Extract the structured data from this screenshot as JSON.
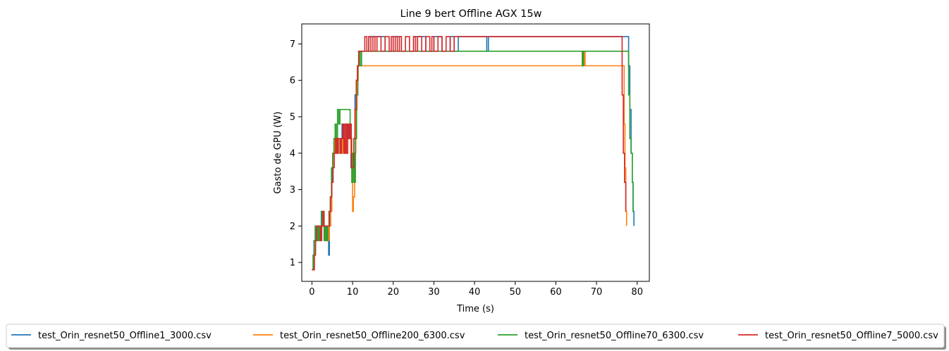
{
  "chart_data": {
    "type": "line",
    "title": "Line 9 bert Offline AGX 15w",
    "xlabel": "Time (s)",
    "ylabel": "Gasto de GPU (W)",
    "xlim": [
      -2.5,
      83
    ],
    "ylim": [
      0.48,
      7.55
    ],
    "xticks": [
      0,
      10,
      20,
      30,
      40,
      50,
      60,
      70,
      80
    ],
    "yticks": [
      1,
      2,
      3,
      4,
      5,
      6,
      7
    ],
    "grid": false,
    "legend_position": "bottom-center",
    "legend_columns": 4,
    "series": [
      {
        "name": "test_Orin_resnet50_Offline1_3000.csv",
        "color": "#1f77b4",
        "x": [
          0,
          0.3,
          0.5,
          0.8,
          1.1,
          1.4,
          1.7,
          2.0,
          2.3,
          2.6,
          2.9,
          3.2,
          3.5,
          3.8,
          4.1,
          4.3,
          4.6,
          4.9,
          5.2,
          5.5,
          5.9,
          6.3,
          6.7,
          7.0,
          7.4,
          7.8,
          8.2,
          8.6,
          9.0,
          9.3,
          9.6,
          9.9,
          10.3,
          10.6,
          10.9,
          11.2,
          11.5,
          11.8,
          12.2,
          12.6,
          13.0,
          14.0,
          16.0,
          18.0,
          20.0,
          22.0,
          25.0,
          28.0,
          30.0,
          32.0,
          34.0,
          35.0,
          36.0,
          40.0,
          43.0,
          43.4,
          43.8,
          48.0,
          55.0,
          62.0,
          70.0,
          75.0,
          77.6,
          77.9,
          78.2,
          78.5,
          78.8,
          79.0,
          79.2
        ],
        "y": [
          0.8,
          0.8,
          1.6,
          2.0,
          2.0,
          1.6,
          2.0,
          1.6,
          2.4,
          2.0,
          2.0,
          1.6,
          2.0,
          1.6,
          1.2,
          2.0,
          2.8,
          3.6,
          4.0,
          4.4,
          4.0,
          4.4,
          4.0,
          4.4,
          4.8,
          4.0,
          4.8,
          4.4,
          4.8,
          4.4,
          3.6,
          3.6,
          4.4,
          5.6,
          6.0,
          6.4,
          6.8,
          6.8,
          6.8,
          6.8,
          6.8,
          7.2,
          7.2,
          6.8,
          7.2,
          6.8,
          7.2,
          6.8,
          7.2,
          6.8,
          7.2,
          6.8,
          7.2,
          7.2,
          6.8,
          7.2,
          7.2,
          7.2,
          7.2,
          7.2,
          7.2,
          7.2,
          7.2,
          6.4,
          5.2,
          4.0,
          3.2,
          2.4,
          2.0
        ]
      },
      {
        "name": "test_Orin_resnet50_Offline200_6300.csv",
        "color": "#ff7f0e",
        "x": [
          0,
          0.3,
          0.6,
          0.9,
          1.2,
          1.5,
          1.8,
          2.1,
          2.4,
          2.7,
          3.0,
          3.3,
          3.7,
          4.0,
          4.3,
          4.6,
          4.9,
          5.2,
          5.6,
          6.0,
          6.4,
          6.8,
          7.2,
          7.6,
          8.0,
          8.4,
          8.8,
          9.2,
          9.6,
          10.0,
          10.2,
          10.5,
          10.8,
          11.1,
          11.4,
          11.7,
          12.0,
          12.5,
          13.0,
          15.0,
          20.0,
          30.0,
          40.0,
          50.0,
          60.0,
          66.3,
          66.5,
          66.7,
          66.9,
          67.2,
          70.0,
          75.0,
          76.5,
          76.8,
          77.0,
          77.2,
          77.4
        ],
        "y": [
          0.8,
          1.2,
          1.6,
          2.0,
          1.6,
          2.0,
          1.6,
          2.0,
          2.4,
          2.0,
          1.6,
          2.0,
          2.0,
          1.6,
          2.0,
          2.4,
          3.2,
          4.0,
          4.4,
          4.0,
          4.4,
          4.0,
          4.4,
          4.0,
          4.4,
          4.0,
          4.4,
          4.4,
          4.0,
          2.4,
          2.8,
          4.0,
          5.2,
          6.0,
          6.4,
          6.4,
          6.4,
          6.4,
          6.4,
          6.4,
          6.4,
          6.4,
          6.4,
          6.4,
          6.4,
          6.4,
          6.8,
          6.4,
          6.8,
          6.4,
          6.4,
          6.4,
          6.4,
          4.8,
          3.6,
          2.4,
          2.0
        ]
      },
      {
        "name": "test_Orin_resnet50_Offline70_6300.csv",
        "color": "#2ca02c",
        "x": [
          0,
          0.3,
          0.6,
          0.9,
          1.2,
          1.5,
          1.8,
          2.1,
          2.4,
          2.7,
          3.0,
          3.3,
          3.6,
          3.9,
          4.2,
          4.5,
          4.8,
          5.1,
          5.4,
          5.7,
          6.0,
          6.3,
          6.6,
          6.9,
          7.2,
          7.5,
          8.0,
          8.5,
          9.0,
          9.4,
          9.8,
          10.1,
          10.4,
          10.7,
          11.0,
          11.3,
          11.6,
          11.9,
          12.2,
          12.6,
          13.0,
          20.0,
          30.0,
          40.0,
          50.0,
          60.0,
          66.3,
          66.5,
          66.8,
          67.0,
          70.0,
          77.0,
          77.6,
          77.9,
          78.2,
          78.5,
          78.8,
          79.0
        ],
        "y": [
          0.8,
          1.2,
          1.6,
          2.0,
          1.6,
          2.0,
          1.6,
          2.0,
          2.4,
          2.0,
          1.6,
          2.0,
          1.6,
          2.0,
          2.4,
          2.8,
          3.6,
          4.0,
          4.4,
          4.8,
          4.4,
          5.2,
          4.8,
          5.2,
          5.2,
          5.2,
          5.2,
          5.2,
          5.2,
          4.4,
          3.2,
          4.0,
          3.2,
          4.4,
          5.6,
          6.4,
          6.8,
          6.4,
          6.8,
          6.8,
          6.8,
          6.8,
          6.8,
          6.8,
          6.8,
          6.8,
          6.8,
          6.4,
          6.8,
          6.8,
          6.8,
          6.8,
          6.8,
          5.6,
          4.4,
          4.0,
          3.2,
          2.4
        ]
      },
      {
        "name": "test_Orin_resnet50_Offline7_5000.csv",
        "color": "#d62728",
        "x": [
          0,
          0.3,
          0.6,
          0.9,
          1.2,
          1.5,
          1.8,
          2.1,
          2.4,
          2.7,
          3.0,
          3.3,
          3.6,
          4.0,
          4.3,
          4.6,
          4.9,
          5.2,
          5.5,
          5.8,
          6.1,
          6.4,
          6.7,
          7.0,
          7.3,
          7.6,
          7.9,
          8.2,
          8.5,
          8.8,
          9.1,
          9.4,
          9.7,
          10.0,
          10.3,
          10.6,
          10.9,
          11.2,
          11.5,
          11.8,
          12.1,
          12.5,
          13.0,
          13.5,
          14.0,
          14.5,
          15.0,
          15.5,
          16.0,
          17.0,
          18.0,
          19.0,
          19.5,
          20.0,
          20.5,
          21.0,
          21.5,
          22.0,
          23.0,
          24.0,
          25.0,
          25.5,
          26.0,
          27.0,
          28.0,
          29.0,
          29.5,
          30.0,
          31.0,
          32.0,
          33.0,
          34.0,
          35.0,
          36.0,
          40.0,
          50.0,
          60.0,
          70.0,
          76.0,
          76.3,
          76.6,
          76.9,
          77.2
        ],
        "y": [
          0.8,
          0.8,
          1.2,
          1.6,
          2.0,
          2.0,
          2.0,
          1.6,
          2.0,
          2.4,
          2.0,
          2.0,
          2.0,
          2.0,
          2.4,
          2.8,
          3.2,
          3.6,
          4.0,
          4.4,
          4.0,
          4.4,
          4.4,
          4.0,
          4.4,
          4.8,
          4.0,
          4.8,
          4.0,
          4.8,
          4.4,
          4.8,
          3.6,
          3.6,
          4.4,
          5.2,
          6.0,
          6.4,
          6.8,
          6.8,
          6.8,
          6.8,
          7.2,
          6.8,
          7.2,
          6.8,
          7.2,
          6.8,
          7.2,
          6.8,
          7.2,
          6.8,
          7.2,
          6.8,
          7.2,
          6.8,
          7.2,
          6.8,
          7.2,
          6.8,
          7.2,
          6.8,
          7.2,
          6.8,
          7.2,
          6.8,
          7.2,
          6.8,
          7.2,
          6.8,
          7.2,
          6.8,
          7.2,
          7.2,
          7.2,
          7.2,
          7.2,
          7.2,
          7.2,
          5.6,
          4.0,
          3.2,
          2.4
        ]
      }
    ]
  }
}
